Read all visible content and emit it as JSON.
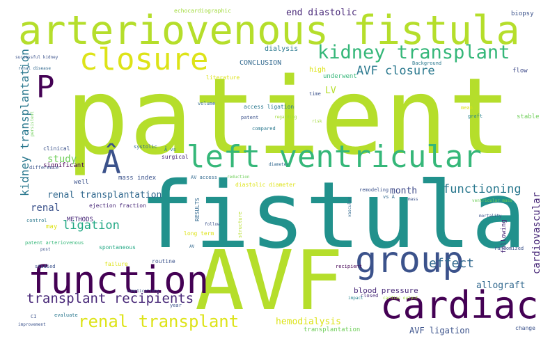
{
  "words": [
    {
      "text": "patient",
      "color": "#b5de2b"
    },
    {
      "text": "fistula",
      "color": "#21918c"
    },
    {
      "text": "AVF",
      "color": "#b5de2b"
    },
    {
      "text": "arteriovenous fistula",
      "color": "#b5de2b"
    },
    {
      "text": "function",
      "color": "#440154"
    },
    {
      "text": "cardiac",
      "color": "#440154"
    },
    {
      "text": "group",
      "color": "#3b528b"
    },
    {
      "text": "closure",
      "color": "#dde318"
    },
    {
      "text": "left ventricular",
      "color": "#35b779"
    },
    {
      "text": "kidney transplant",
      "color": "#35b779"
    },
    {
      "text": "P",
      "color": "#440154"
    },
    {
      "text": "Â",
      "color": "#3b528b"
    },
    {
      "text": "renal transplant",
      "color": "#dde318"
    },
    {
      "text": "transplant recipients",
      "color": "#482878"
    },
    {
      "text": "kidney transplantation",
      "color": "#2a788e"
    },
    {
      "text": "AVF closure",
      "color": "#2a788e"
    },
    {
      "text": "end diastolic",
      "color": "#482878"
    },
    {
      "text": "effect",
      "color": "#31688e"
    },
    {
      "text": "functioning",
      "color": "#2a788e"
    },
    {
      "text": "ligation",
      "color": "#22a884"
    },
    {
      "text": "cardiovascular",
      "color": "#482878"
    },
    {
      "text": "renal transplantation",
      "color": "#31688e"
    },
    {
      "text": "study",
      "color": "#6ece58"
    },
    {
      "text": "renal",
      "color": "#3b528b"
    },
    {
      "text": "month",
      "color": "#3e4a89"
    },
    {
      "text": "allograft",
      "color": "#31688e"
    },
    {
      "text": "hemodialysis",
      "color": "#dde318"
    },
    {
      "text": "AVF ligation",
      "color": "#3b528b"
    },
    {
      "text": "blood pressure",
      "color": "#482878"
    },
    {
      "text": "LV",
      "color": "#b5de2b"
    },
    {
      "text": "CONCLUSION",
      "color": "#31688e"
    },
    {
      "text": "dialysis",
      "color": "#2a788e"
    },
    {
      "text": "high",
      "color": "#dde318"
    },
    {
      "text": "underwent",
      "color": "#35b779"
    },
    {
      "text": "Background",
      "color": "#2a788e"
    },
    {
      "text": "echocardiographic",
      "color": "#a0da39"
    },
    {
      "text": "biopsy",
      "color": "#3b528b"
    },
    {
      "text": "successful kidney",
      "color": "#3b528b"
    },
    {
      "text": "renal disease",
      "color": "#31688e"
    },
    {
      "text": "literature",
      "color": "#dde318"
    },
    {
      "text": "flow",
      "color": "#3e4a89"
    },
    {
      "text": "time",
      "color": "#3b528b"
    },
    {
      "text": "volume",
      "color": "#31688e"
    },
    {
      "text": "access ligation",
      "color": "#2a788e"
    },
    {
      "text": "patent",
      "color": "#3b528b"
    },
    {
      "text": "regarding",
      "color": "#a0da39"
    },
    {
      "text": "risk",
      "color": "#a0da39"
    },
    {
      "text": "compared",
      "color": "#2a788e"
    },
    {
      "text": "mean",
      "color": "#dde318"
    },
    {
      "text": "graft",
      "color": "#26828e"
    },
    {
      "text": "stable",
      "color": "#6ece58"
    },
    {
      "text": "persistent",
      "color": "#6ece58"
    },
    {
      "text": "clinical",
      "color": "#3b528b"
    },
    {
      "text": "systolic",
      "color": "#31688e"
    },
    {
      "text": "Â vs",
      "color": "#2a788e"
    },
    {
      "text": "surgical",
      "color": "#482878"
    },
    {
      "text": "significant",
      "color": "#440154"
    },
    {
      "text": "difference",
      "color": "#3b528b"
    },
    {
      "text": "well",
      "color": "#3b528b"
    },
    {
      "text": "mass index",
      "color": "#3b528b"
    },
    {
      "text": "diameter",
      "color": "#31688e"
    },
    {
      "text": "AV access",
      "color": "#31688e"
    },
    {
      "text": "reduction",
      "color": "#6ece58"
    },
    {
      "text": "diastolic diameter",
      "color": "#dde318"
    },
    {
      "text": "remodeling",
      "color": "#3b528b"
    },
    {
      "text": "vs Â",
      "color": "#31688e"
    },
    {
      "text": "mass",
      "color": "#3b528b"
    },
    {
      "text": "vascular",
      "color": "#31688e"
    },
    {
      "text": "ventricular mass",
      "color": "#6ece58"
    },
    {
      "text": "ejection fraction",
      "color": "#482878"
    },
    {
      "text": "RESULTS",
      "color": "#31688e"
    },
    {
      "text": "structure",
      "color": "#b5de2b"
    },
    {
      "text": "mortality",
      "color": "#3b528b"
    },
    {
      "text": "METHODS",
      "color": "#482878"
    },
    {
      "text": "may",
      "color": "#dde318"
    },
    {
      "text": "control",
      "color": "#2a788e"
    },
    {
      "text": "follow",
      "color": "#3b528b"
    },
    {
      "text": "patent arteriovenous",
      "color": "#35b779"
    },
    {
      "text": "long term",
      "color": "#dde318"
    },
    {
      "text": "following",
      "color": "#482878"
    },
    {
      "text": "post",
      "color": "#3b528b"
    },
    {
      "text": "spontaneous",
      "color": "#22a884"
    },
    {
      "text": "AV",
      "color": "#31688e"
    },
    {
      "text": "randomized",
      "color": "#3b528b"
    },
    {
      "text": "studied",
      "color": "#3b528b"
    },
    {
      "text": "failure",
      "color": "#dde318"
    },
    {
      "text": "routine",
      "color": "#3b528b"
    },
    {
      "text": "recipient",
      "color": "#440154"
    },
    {
      "text": "complications",
      "color": "#3b528b"
    },
    {
      "text": "year",
      "color": "#3b528b"
    },
    {
      "text": "CI",
      "color": "#3b528b"
    },
    {
      "text": "evaluate",
      "color": "#2a788e"
    },
    {
      "text": "closed",
      "color": "#482878"
    },
    {
      "text": "cardiac output",
      "color": "#a0da39"
    },
    {
      "text": "impact",
      "color": "#26828e"
    },
    {
      "text": "improvement",
      "color": "#3b528b"
    },
    {
      "text": "transplantation",
      "color": "#6ece58"
    },
    {
      "text": "change",
      "color": "#3b528b"
    }
  ]
}
